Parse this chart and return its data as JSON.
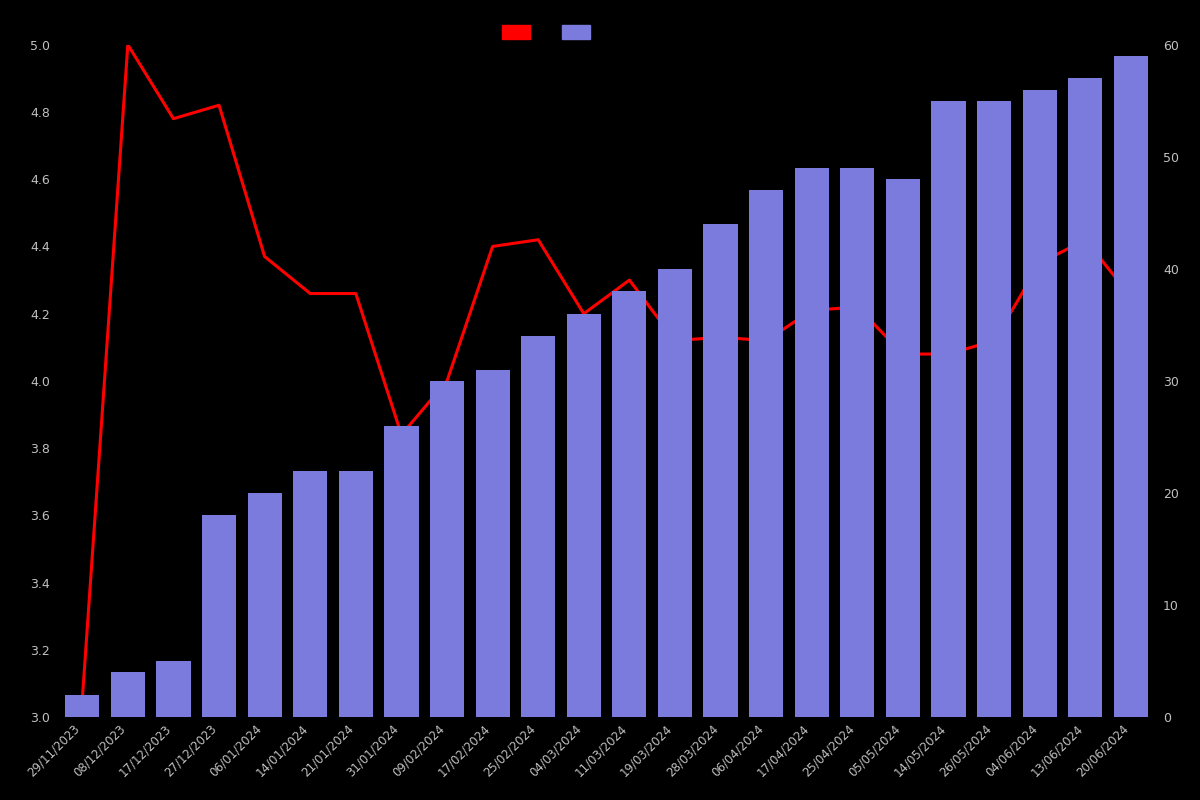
{
  "dates": [
    "29/11/2023",
    "08/12/2023",
    "17/12/2023",
    "27/12/2023",
    "06/01/2024",
    "14/01/2024",
    "21/01/2024",
    "31/01/2024",
    "09/02/2024",
    "17/02/2024",
    "25/02/2024",
    "04/03/2024",
    "11/03/2024",
    "19/03/2024",
    "28/03/2024",
    "06/04/2024",
    "17/04/2024",
    "25/04/2024",
    "05/05/2024",
    "14/05/2024",
    "26/05/2024",
    "04/06/2024",
    "13/06/2024",
    "20/06/2024"
  ],
  "bar_values": [
    2,
    4,
    5,
    18,
    20,
    22,
    22,
    26,
    30,
    31,
    34,
    36,
    38,
    40,
    44,
    47,
    49,
    49,
    48,
    55,
    55,
    56,
    57,
    59
  ],
  "line_values": [
    3.05,
    5.0,
    4.78,
    4.82,
    4.37,
    4.26,
    4.26,
    3.84,
    4.0,
    4.4,
    4.42,
    4.2,
    4.3,
    4.12,
    4.13,
    4.12,
    4.21,
    4.22,
    4.08,
    4.08,
    4.12,
    4.35,
    4.42,
    4.25
  ],
  "bar_color": "#7b7bdd",
  "line_color": "#ff0000",
  "background_color": "#000000",
  "text_color": "#c0c0c0",
  "ylim_left": [
    3.0,
    5.0
  ],
  "ylim_right": [
    0,
    60
  ],
  "yticks_left": [
    3.0,
    3.2,
    3.4,
    3.6,
    3.8,
    4.0,
    4.2,
    4.4,
    4.6,
    4.8,
    5.0
  ],
  "yticks_right": [
    0,
    10,
    20,
    30,
    40,
    50,
    60
  ],
  "legend_labels": [
    "",
    ""
  ],
  "figsize": [
    12,
    8
  ]
}
